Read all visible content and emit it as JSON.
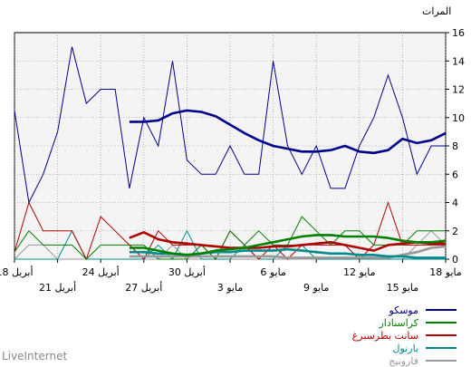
{
  "chart_data": {
    "type": "line",
    "ylabel": "المرات",
    "ylim": [
      0,
      16
    ],
    "y_ticks": [
      0,
      2,
      4,
      6,
      8,
      10,
      12,
      14,
      16
    ],
    "x_tick_labels": [
      {
        "date": "2012-04-18",
        "label": "18 أبريل",
        "row": 0
      },
      {
        "date": "2012-04-21",
        "label": "21 أبريل",
        "row": 1
      },
      {
        "date": "2012-04-24",
        "label": "24 أبريل",
        "row": 0
      },
      {
        "date": "2012-04-27",
        "label": "27 أبريل",
        "row": 1
      },
      {
        "date": "2012-04-30",
        "label": "30 أبريل",
        "row": 0
      },
      {
        "date": "2012-05-03",
        "label": "3 مايو",
        "row": 1
      },
      {
        "date": "2012-05-06",
        "label": "6 مايو",
        "row": 0
      },
      {
        "date": "2012-05-09",
        "label": "9 مايو",
        "row": 1
      },
      {
        "date": "2012-05-12",
        "label": "12 مايو",
        "row": 0
      },
      {
        "date": "2012-05-15",
        "label": "15 مايو",
        "row": 1
      },
      {
        "date": "2012-05-18",
        "label": "18 مايو",
        "row": 0
      }
    ],
    "x_dates": [
      "2012-04-18",
      "2012-04-19",
      "2012-04-20",
      "2012-04-21",
      "2012-04-22",
      "2012-04-23",
      "2012-04-24",
      "2012-04-25",
      "2012-04-26",
      "2012-04-27",
      "2012-04-28",
      "2012-04-29",
      "2012-04-30",
      "2012-05-01",
      "2012-05-02",
      "2012-05-03",
      "2012-05-04",
      "2012-05-05",
      "2012-05-06",
      "2012-05-07",
      "2012-05-08",
      "2012-05-09",
      "2012-05-10",
      "2012-05-11",
      "2012-05-12",
      "2012-05-13",
      "2012-05-14",
      "2012-05-15",
      "2012-05-16",
      "2012-05-17",
      "2012-05-18"
    ],
    "series": [
      {
        "name": "موسكو",
        "color": "#00008B",
        "values": [
          10.5,
          4,
          6,
          9,
          15,
          11,
          12,
          12,
          5,
          10,
          8,
          14,
          7,
          6,
          6,
          8,
          6,
          6,
          14,
          8,
          6,
          8,
          5,
          5,
          8,
          10,
          13,
          10,
          6,
          8,
          8
        ],
        "smooth_values": [
          null,
          null,
          null,
          null,
          null,
          null,
          null,
          null,
          9.7,
          9.7,
          9.8,
          10.3,
          10.5,
          10.4,
          10.1,
          9.5,
          8.9,
          8.4,
          8.0,
          7.8,
          7.6,
          7.6,
          7.7,
          8.0,
          7.6,
          7.5,
          7.7,
          8.5,
          8.2,
          8.4,
          8.9
        ]
      },
      {
        "name": "كراسنادار",
        "color": "#008000",
        "values": [
          0.5,
          2,
          1,
          1,
          1,
          0,
          1,
          1,
          1,
          1,
          0,
          0,
          0,
          1,
          0,
          2,
          1,
          2,
          1,
          1,
          3,
          2,
          1,
          2,
          2,
          1,
          1,
          1,
          2,
          2,
          2
        ],
        "smooth_values": [
          null,
          null,
          null,
          null,
          null,
          null,
          null,
          null,
          0.8,
          0.8,
          0.6,
          0.4,
          0.3,
          0.4,
          0.6,
          0.7,
          0.8,
          1.0,
          1.2,
          1.4,
          1.6,
          1.7,
          1.7,
          1.6,
          1.6,
          1.6,
          1.5,
          1.3,
          1.2,
          1.2,
          1.3
        ]
      },
      {
        "name": "سانت بطرسبرغ",
        "color": "#B00000",
        "values": [
          0.5,
          4,
          2,
          2,
          2,
          0,
          3,
          2,
          1,
          0,
          2,
          1,
          1,
          1,
          0,
          2,
          1,
          0,
          1,
          0,
          1,
          1,
          1,
          1,
          0,
          1,
          4,
          1,
          1,
          1,
          1
        ],
        "smooth_values": [
          null,
          null,
          null,
          null,
          null,
          null,
          null,
          null,
          1.5,
          1.9,
          1.4,
          1.2,
          1.1,
          1.0,
          0.9,
          0.8,
          0.8,
          0.8,
          0.9,
          0.9,
          1.0,
          1.1,
          1.2,
          1.0,
          0.8,
          0.6,
          1.0,
          1.1,
          1.2,
          1.1,
          1.1
        ]
      },
      {
        "name": "بارنول",
        "color": "#008B8B",
        "values": [
          0,
          0,
          0,
          0,
          2,
          0,
          0,
          0,
          0,
          0,
          1,
          0,
          2,
          0,
          0,
          0,
          1,
          0,
          0,
          1,
          1,
          0,
          0,
          0,
          0,
          0,
          0,
          0,
          0,
          0,
          0
        ],
        "smooth_values": [
          null,
          null,
          null,
          null,
          null,
          null,
          null,
          null,
          0.5,
          0.5,
          0.4,
          0.4,
          0.3,
          0.4,
          0.5,
          0.5,
          0.6,
          0.6,
          0.6,
          0.7,
          0.6,
          0.5,
          0.4,
          0.4,
          0.3,
          0.3,
          0.2,
          0.2,
          0.1,
          0.1,
          0.1
        ]
      },
      {
        "name": "فارونيج",
        "color": "#999999",
        "values": [
          0,
          1,
          1,
          0,
          0,
          0,
          0,
          0,
          0,
          0,
          0,
          1,
          0,
          0,
          0,
          0,
          0,
          0,
          0,
          0,
          0,
          0,
          0,
          0,
          0,
          0,
          0,
          0,
          1,
          2,
          1
        ],
        "smooth_values": [
          null,
          null,
          null,
          null,
          null,
          null,
          null,
          null,
          0.2,
          0.2,
          0.2,
          0.2,
          0.2,
          0.2,
          0.2,
          0.2,
          0.2,
          0.2,
          0.2,
          0.1,
          0.1,
          0.1,
          0.1,
          0.1,
          0.1,
          0.1,
          0.1,
          0.3,
          0.5,
          0.8,
          0.9
        ]
      }
    ],
    "grid": true
  },
  "footer": {
    "brand": "LiveInternet"
  }
}
